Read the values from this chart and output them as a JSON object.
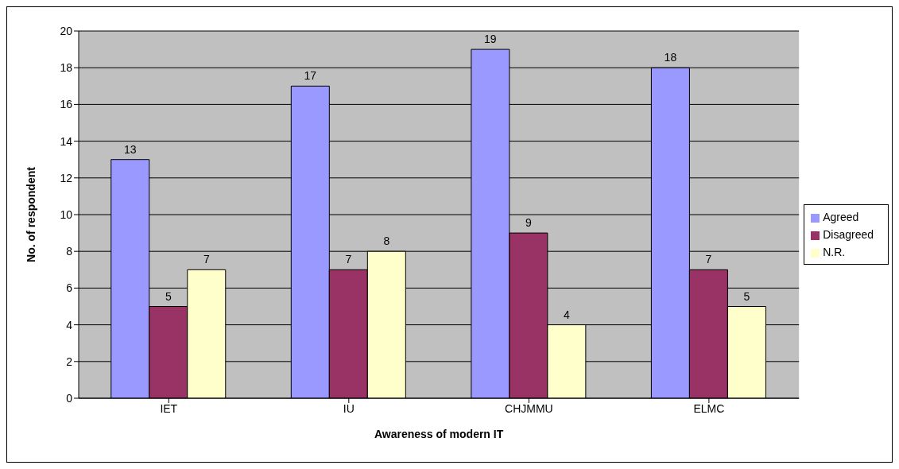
{
  "chart_data": {
    "type": "bar",
    "xlabel": "Awareness of modern IT",
    "ylabel": "No. of respondent",
    "categories": [
      "IET",
      "IU",
      "CHJMMU",
      "ELMC"
    ],
    "series": [
      {
        "name": "Agreed",
        "color": "#9999ff",
        "values": [
          13,
          17,
          19,
          18
        ]
      },
      {
        "name": "Disagreed",
        "color": "#993366",
        "values": [
          5,
          7,
          9,
          7
        ]
      },
      {
        "name": "N.R.",
        "color": "#ffffcc",
        "values": [
          7,
          8,
          4,
          5
        ]
      }
    ],
    "ylim": [
      0,
      20
    ],
    "yticks": [
      0,
      2,
      4,
      6,
      8,
      10,
      12,
      14,
      16,
      18,
      20
    ],
    "grid": "y",
    "legend": "right",
    "data_labels": true
  }
}
